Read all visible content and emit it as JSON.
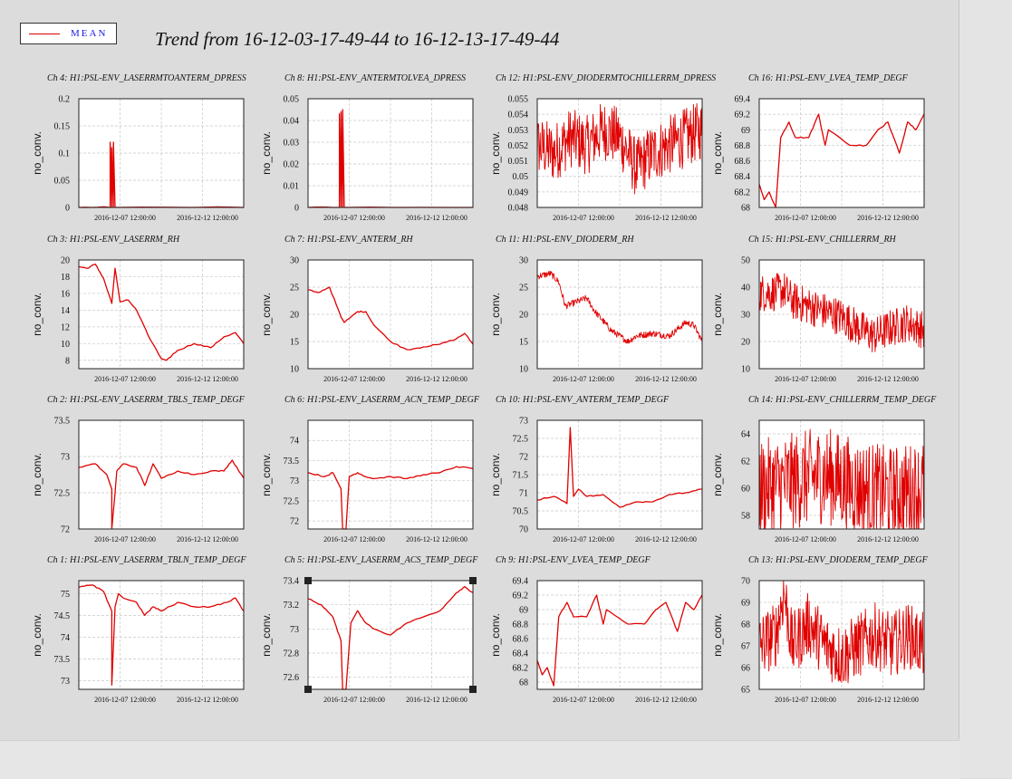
{
  "title": "Trend from 16-12-03-17-49-44 to 16-12-13-17-49-44",
  "legend": {
    "label": "MEAN",
    "color": "#e00000"
  },
  "chart_data": [
    {
      "type": "line",
      "title": "Ch 4: H1:PSL-ENV_LASERRMTOANTERM_DPRESS",
      "ylabel": "no_conv.",
      "ylim": [
        0,
        0.2
      ],
      "yticks": [
        "0",
        "0.05",
        "0.1",
        "0.15",
        "0.2"
      ],
      "xticks": [
        "2016-12-07 12:00:00",
        "2016-12-12 12:00:00"
      ],
      "series": [
        {
          "x": [
            0,
            0.19,
            0.19,
            0.2,
            0.2,
            0.21,
            0.21,
            0.22,
            0.22,
            1
          ],
          "y": [
            0,
            0,
            0.12,
            0,
            0.11,
            0,
            0.12,
            0,
            0,
            0
          ]
        }
      ]
    },
    {
      "type": "line",
      "title": "Ch 8: H1:PSL-ENV_ANTERMTOLVEA_DPRESS",
      "ylabel": "no_conv.",
      "ylim": [
        0,
        0.05
      ],
      "yticks": [
        "0",
        "0.01",
        "0.02",
        "0.03",
        "0.04",
        "0.05"
      ],
      "xticks": [
        "2016-12-07 12:00:00",
        "2016-12-12 12:00:00"
      ],
      "series": [
        {
          "x": [
            0,
            0.19,
            0.19,
            0.2,
            0.2,
            0.21,
            0.21,
            0.22,
            0.22,
            1
          ],
          "y": [
            0,
            0,
            0.043,
            0,
            0.044,
            0,
            0.045,
            0,
            0,
            0
          ]
        }
      ]
    },
    {
      "type": "line",
      "title": "Ch 12: H1:PSL-ENV_DIODERMTOCHILLERRM_DPRESS",
      "ylabel": "no_conv.",
      "ylim": [
        0.048,
        0.055
      ],
      "yticks": [
        "0.048",
        "0.049",
        "0.05",
        "0.051",
        "0.052",
        "0.053",
        "0.054",
        "0.055"
      ],
      "xticks": [
        "2016-12-07 12:00:00",
        "2016-12-12 12:00:00"
      ],
      "series": [
        {
          "x": [
            0,
            0.1,
            0.2,
            0.3,
            0.4,
            0.5,
            0.6,
            0.7,
            0.8,
            0.9,
            1
          ],
          "y": [
            0.052,
            0.0515,
            0.0525,
            0.052,
            0.053,
            0.0525,
            0.0505,
            0.0515,
            0.052,
            0.0525,
            0.053
          ]
        }
      ]
    },
    {
      "type": "line",
      "title": "Ch 16: H1:PSL-ENV_LVEA_TEMP_DEGF",
      "ylabel": "no_conv.",
      "ylim": [
        68,
        69.4
      ],
      "yticks": [
        "68",
        "68.2",
        "68.4",
        "68.6",
        "68.8",
        "69",
        "69.2",
        "69.4"
      ],
      "xticks": [
        "2016-12-07 12:00:00",
        "2016-12-12 12:00:00"
      ],
      "series": [
        {
          "x": [
            0,
            0.03,
            0.06,
            0.1,
            0.13,
            0.18,
            0.22,
            0.3,
            0.36,
            0.4,
            0.42,
            0.55,
            0.65,
            0.72,
            0.78,
            0.85,
            0.9,
            0.95,
            1
          ],
          "y": [
            68.3,
            68.1,
            68.2,
            68,
            68.9,
            69.1,
            68.9,
            68.9,
            69.2,
            68.8,
            69,
            68.8,
            68.8,
            69,
            69.1,
            68.7,
            69.1,
            69,
            69.2
          ]
        }
      ]
    },
    {
      "type": "line",
      "title": "Ch 3: H1:PSL-ENV_LASERRM_RH",
      "ylabel": "no_conv.",
      "ylim": [
        7,
        20
      ],
      "yticks": [
        "8",
        "10",
        "12",
        "14",
        "16",
        "18",
        "20"
      ],
      "xticks": [
        "2016-12-07 12:00:00",
        "2016-12-12 12:00:00"
      ],
      "series": [
        {
          "x": [
            0,
            0.05,
            0.1,
            0.15,
            0.2,
            0.22,
            0.25,
            0.3,
            0.35,
            0.42,
            0.5,
            0.53,
            0.6,
            0.7,
            0.8,
            0.88,
            0.95,
            1
          ],
          "y": [
            19.2,
            19,
            19.5,
            17.8,
            14.8,
            19,
            15,
            15.2,
            14,
            11,
            8.2,
            8,
            9.2,
            10,
            9.5,
            10.8,
            11.3,
            10
          ]
        }
      ]
    },
    {
      "type": "line",
      "title": "Ch 7: H1:PSL-ENV_ANTERM_RH",
      "ylabel": "no_conv.",
      "ylim": [
        10,
        30
      ],
      "yticks": [
        "10",
        "15",
        "20",
        "25",
        "30"
      ],
      "xticks": [
        "2016-12-07 12:00:00",
        "2016-12-12 12:00:00"
      ],
      "series": [
        {
          "x": [
            0,
            0.06,
            0.13,
            0.2,
            0.22,
            0.3,
            0.35,
            0.4,
            0.5,
            0.6,
            0.7,
            0.8,
            0.9,
            0.95,
            1
          ],
          "y": [
            24.5,
            24,
            25,
            19.5,
            18.5,
            20.5,
            20.5,
            18,
            15,
            13.5,
            14,
            14.5,
            15.5,
            16.5,
            14.5
          ]
        }
      ]
    },
    {
      "type": "line",
      "title": "Ch 11: H1:PSL-ENV_DIODERM_RH",
      "ylabel": "no_conv.",
      "ylim": [
        10,
        30
      ],
      "yticks": [
        "10",
        "15",
        "20",
        "25",
        "30"
      ],
      "xticks": [
        "2016-12-07 12:00:00",
        "2016-12-12 12:00:00"
      ],
      "series": [
        {
          "x": [
            0,
            0.08,
            0.13,
            0.17,
            0.3,
            0.35,
            0.45,
            0.55,
            0.6,
            0.7,
            0.8,
            0.9,
            0.95,
            1
          ],
          "y": [
            27,
            27.5,
            26,
            21.5,
            23,
            20.5,
            17,
            15,
            16,
            16.5,
            16,
            18.5,
            18,
            15
          ]
        }
      ]
    },
    {
      "type": "line",
      "title": "Ch 15: H1:PSL-ENV_CHILLERRM_RH",
      "ylabel": "no_conv.",
      "ylim": [
        10,
        50
      ],
      "yticks": [
        "10",
        "20",
        "30",
        "40",
        "50"
      ],
      "xticks": [
        "2016-12-07 12:00:00",
        "2016-12-12 12:00:00"
      ],
      "series": [
        {
          "x": [
            0,
            0.1,
            0.15,
            0.2,
            0.3,
            0.4,
            0.5,
            0.6,
            0.7,
            0.8,
            0.9,
            1
          ],
          "y": [
            38,
            38,
            39,
            35,
            33,
            31,
            29,
            25,
            22,
            25,
            27,
            24
          ]
        }
      ]
    },
    {
      "type": "line",
      "title": "Ch 2: H1:PSL-ENV_LASERRM_TBLS_TEMP_DEGF",
      "ylabel": "no_conv.",
      "ylim": [
        72,
        73.5
      ],
      "yticks": [
        "72",
        "72.5",
        "73",
        "73.5"
      ],
      "xticks": [
        "2016-12-07 12:00:00",
        "2016-12-12 12:00:00"
      ],
      "series": [
        {
          "x": [
            0,
            0.1,
            0.17,
            0.2,
            0.2,
            0.22,
            0.23,
            0.27,
            0.35,
            0.4,
            0.45,
            0.5,
            0.6,
            0.7,
            0.8,
            0.88,
            0.93,
            1
          ],
          "y": [
            72.85,
            72.9,
            72.75,
            72.55,
            72.0,
            72.5,
            72.8,
            72.9,
            72.85,
            72.6,
            72.9,
            72.7,
            72.8,
            72.75,
            72.8,
            72.8,
            72.95,
            72.7
          ]
        }
      ]
    },
    {
      "type": "line",
      "title": "Ch 6: H1:PSL-ENV_LASERRM_ACN_TEMP_DEGF",
      "ylabel": "no_conv.",
      "ylim": [
        71.8,
        74.5
      ],
      "yticks": [
        "72",
        "72.5",
        "73",
        "73.5",
        "74"
      ],
      "xticks": [
        "2016-12-07 12:00:00",
        "2016-12-12 12:00:00"
      ],
      "series": [
        {
          "x": [
            0,
            0.1,
            0.15,
            0.2,
            0.21,
            0.23,
            0.25,
            0.3,
            0.35,
            0.4,
            0.5,
            0.6,
            0.7,
            0.8,
            0.9,
            1
          ],
          "y": [
            73.2,
            73.1,
            73.2,
            72.8,
            71.8,
            71.8,
            73.1,
            73.2,
            73.1,
            73.05,
            73.1,
            73.05,
            73.15,
            73.2,
            73.35,
            73.3
          ]
        }
      ]
    },
    {
      "type": "line",
      "title": "Ch 10: H1:PSL-ENV_ANTERM_TEMP_DEGF",
      "ylabel": "no_conv.",
      "ylim": [
        70,
        73
      ],
      "yticks": [
        "70",
        "70.5",
        "71",
        "71.5",
        "72",
        "72.5",
        "73"
      ],
      "xticks": [
        "2016-12-07 12:00:00",
        "2016-12-12 12:00:00"
      ],
      "series": [
        {
          "x": [
            0,
            0.1,
            0.18,
            0.2,
            0.22,
            0.25,
            0.3,
            0.4,
            0.5,
            0.6,
            0.7,
            0.8,
            0.9,
            1
          ],
          "y": [
            70.8,
            70.9,
            70.7,
            72.8,
            70.9,
            71.1,
            70.9,
            70.95,
            70.6,
            70.75,
            70.75,
            70.95,
            71,
            71.1
          ]
        }
      ]
    },
    {
      "type": "line",
      "title": "Ch 14: H1:PSL-ENV_CHILLERRM_TEMP_DEGF",
      "ylabel": "no_conv.",
      "ylim": [
        57,
        65
      ],
      "yticks": [
        "58",
        "60",
        "62",
        "64"
      ],
      "xticks": [
        "2016-12-07 12:00:00",
        "2016-12-12 12:00:00"
      ],
      "series": [
        {
          "x": [
            0,
            0.2,
            0.4,
            0.5,
            0.6,
            0.8,
            1
          ],
          "y": [
            60,
            60.5,
            61,
            60.5,
            60,
            59.5,
            60
          ]
        }
      ]
    },
    {
      "type": "line",
      "title": "Ch 1: H1:PSL-ENV_LASERRM_TBLN_TEMP_DEGF",
      "ylabel": "no_conv.",
      "ylim": [
        72.8,
        75.3
      ],
      "yticks": [
        "73",
        "73.5",
        "74",
        "74.5",
        "75"
      ],
      "xticks": [
        "2016-12-07 12:00:00",
        "2016-12-12 12:00:00"
      ],
      "series": [
        {
          "x": [
            0,
            0.08,
            0.15,
            0.2,
            0.2,
            0.22,
            0.24,
            0.27,
            0.35,
            0.4,
            0.45,
            0.5,
            0.6,
            0.7,
            0.8,
            0.9,
            0.95,
            1
          ],
          "y": [
            75.15,
            75.2,
            75.05,
            74.6,
            72.9,
            74.7,
            75.0,
            74.9,
            74.8,
            74.5,
            74.7,
            74.6,
            74.8,
            74.7,
            74.7,
            74.8,
            74.9,
            74.6
          ]
        }
      ]
    },
    {
      "type": "line",
      "title": "Ch 5: H1:PSL-ENV_LASERRM_ACS_TEMP_DEGF",
      "ylabel": "no_conv.",
      "ylim": [
        72.5,
        73.4
      ],
      "yticks": [
        "72.6",
        "72.8",
        "73",
        "73.2",
        "73.4"
      ],
      "xticks": [
        "2016-12-07 12:00:00",
        "2016-12-12 12:00:00"
      ],
      "series": [
        {
          "x": [
            0,
            0.08,
            0.15,
            0.2,
            0.21,
            0.23,
            0.26,
            0.3,
            0.35,
            0.4,
            0.5,
            0.6,
            0.7,
            0.8,
            0.9,
            0.95,
            1
          ],
          "y": [
            73.25,
            73.2,
            73.1,
            72.9,
            72.5,
            72.5,
            73.05,
            73.15,
            73.05,
            73.0,
            72.95,
            73.05,
            73.1,
            73.15,
            73.3,
            73.35,
            73.3
          ]
        }
      ]
    },
    {
      "type": "line",
      "title": "Ch 9: H1:PSL-ENV_LVEA_TEMP_DEGF",
      "ylabel": "no_conv.",
      "ylim": [
        67.9,
        69.4
      ],
      "yticks": [
        "68",
        "68.2",
        "68.4",
        "68.6",
        "68.8",
        "69",
        "69.2",
        "69.4"
      ],
      "xticks": [
        "2016-12-07 12:00:00",
        "2016-12-12 12:00:00"
      ],
      "series": [
        {
          "x": [
            0,
            0.03,
            0.06,
            0.1,
            0.13,
            0.18,
            0.22,
            0.3,
            0.36,
            0.4,
            0.42,
            0.55,
            0.65,
            0.72,
            0.78,
            0.85,
            0.9,
            0.95,
            1
          ],
          "y": [
            68.3,
            68.1,
            68.2,
            67.95,
            68.9,
            69.1,
            68.9,
            68.9,
            69.2,
            68.8,
            69,
            68.8,
            68.8,
            69,
            69.1,
            68.7,
            69.1,
            69,
            69.2
          ]
        }
      ]
    },
    {
      "type": "line",
      "title": "Ch 13: H1:PSL-ENV_DIODERM_TEMP_DEGF",
      "ylabel": "no_conv.",
      "ylim": [
        65,
        70
      ],
      "yticks": [
        "65",
        "66",
        "67",
        "68",
        "69",
        "70"
      ],
      "xticks": [
        "2016-12-07 12:00:00",
        "2016-12-12 12:00:00"
      ],
      "series": [
        {
          "x": [
            0,
            0.1,
            0.15,
            0.2,
            0.3,
            0.4,
            0.5,
            0.6,
            0.7,
            0.8,
            0.9,
            1
          ],
          "y": [
            67,
            67.5,
            69.5,
            67,
            68,
            67,
            66.5,
            67,
            67.5,
            67,
            67.5,
            67
          ]
        }
      ]
    }
  ]
}
